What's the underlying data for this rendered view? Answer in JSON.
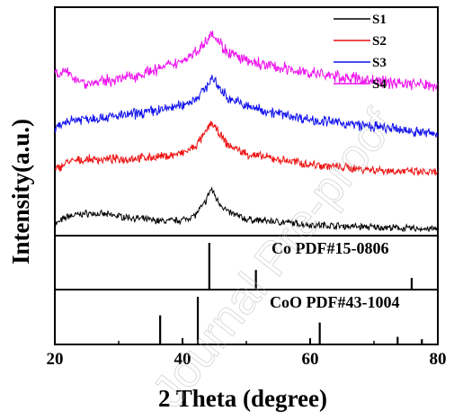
{
  "chart_data": {
    "type": "line",
    "title": "",
    "xlabel": "2 Theta (degree)",
    "ylabel": "Intensity(a.u.)",
    "xlim": [
      20,
      80
    ],
    "x_ticks": [
      "20",
      "40",
      "60",
      "80"
    ],
    "x_tick_values": [
      20,
      40,
      60,
      80
    ],
    "x_minor_ticks": [
      30,
      50,
      70
    ],
    "y_scale": "arbitrary units, no ticks",
    "grid": false,
    "legend": "top-right",
    "series": [
      {
        "name": "S1",
        "color": "#000000",
        "x": [
          20,
          22,
          25,
          28,
          31,
          34,
          37,
          40,
          42,
          43.5,
          44.5,
          45.5,
          47,
          50,
          55,
          60,
          65,
          70,
          75,
          80
        ],
        "y": [
          0.12,
          0.26,
          0.31,
          0.29,
          0.25,
          0.21,
          0.18,
          0.2,
          0.28,
          0.48,
          0.72,
          0.52,
          0.34,
          0.21,
          0.17,
          0.12,
          0.1,
          0.08,
          0.06,
          0.05
        ]
      },
      {
        "name": "S2",
        "color": "#ee1111",
        "x": [
          20,
          22,
          25,
          28,
          31,
          34,
          37,
          40,
          42,
          43.5,
          44.5,
          45.5,
          47,
          50,
          55,
          60,
          65,
          70,
          75,
          80
        ],
        "y": [
          1.02,
          1.16,
          1.2,
          1.2,
          1.21,
          1.23,
          1.25,
          1.3,
          1.41,
          1.62,
          1.82,
          1.66,
          1.45,
          1.29,
          1.2,
          1.12,
          1.07,
          1.03,
          1.0,
          0.98
        ]
      },
      {
        "name": "S3",
        "color": "#1111ee",
        "x": [
          20,
          22,
          25,
          28,
          31,
          34,
          37,
          40,
          42,
          43.5,
          44.5,
          45.5,
          47,
          50,
          55,
          60,
          65,
          70,
          75,
          80
        ],
        "y": [
          1.68,
          1.85,
          1.88,
          1.9,
          1.93,
          1.98,
          2.03,
          2.1,
          2.2,
          2.36,
          2.55,
          2.42,
          2.23,
          2.08,
          1.96,
          1.86,
          1.8,
          1.74,
          1.68,
          1.62
        ]
      },
      {
        "name": "S4",
        "color": "#ee11ee",
        "x": [
          20,
          22,
          25,
          28,
          31,
          34,
          37,
          40,
          42,
          43.5,
          44.5,
          45.5,
          47,
          50,
          55,
          60,
          65,
          70,
          75,
          80
        ],
        "y": [
          2.65,
          2.62,
          2.45,
          2.5,
          2.55,
          2.63,
          2.72,
          2.84,
          2.97,
          3.13,
          3.33,
          3.17,
          2.98,
          2.82,
          2.72,
          2.63,
          2.56,
          2.5,
          2.46,
          2.42
        ]
      }
    ],
    "references": [
      {
        "name": "Co PDF#15-0806",
        "peaks": [
          {
            "x": 44.2,
            "intensity": 100
          },
          {
            "x": 51.5,
            "intensity": 42
          },
          {
            "x": 75.9,
            "intensity": 25
          }
        ]
      },
      {
        "name": "CoO PDF#43-1004",
        "peaks": [
          {
            "x": 36.5,
            "intensity": 61
          },
          {
            "x": 42.4,
            "intensity": 100
          },
          {
            "x": 61.5,
            "intensity": 46
          },
          {
            "x": 73.7,
            "intensity": 16
          },
          {
            "x": 77.5,
            "intensity": 11
          }
        ]
      }
    ]
  },
  "watermark": "Journal Pre-proof"
}
